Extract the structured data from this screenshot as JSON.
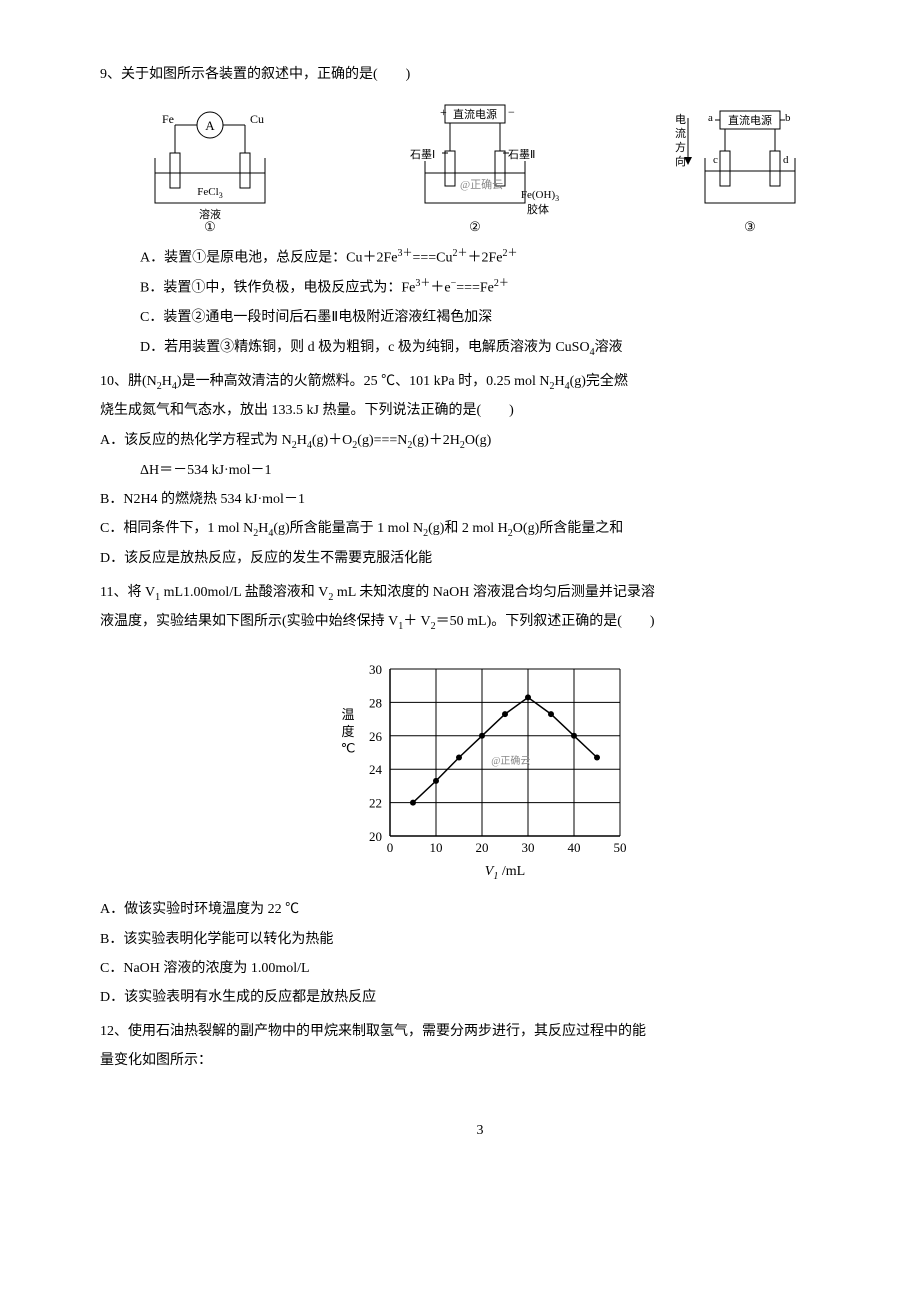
{
  "q9": {
    "stem": "9、关于如图所示各装置的叙述中，正确的是(　　)",
    "diagram": {
      "dev1": {
        "top_label_left": "Fe",
        "top_label_right": "Cu",
        "meter": "A",
        "sol_line1": "FeCl",
        "sol_sub": "3",
        "sol_line2": "溶液",
        "num": "①"
      },
      "dev2": {
        "top_box": "直流电源",
        "left_elec": "石墨Ⅰ",
        "right_elec": "石墨Ⅱ",
        "wm": "@正确云",
        "sol_line1": "Fe(OH)",
        "sol_sub": "3",
        "sol_line2": "胶体",
        "num": "②"
      },
      "dev3": {
        "side_line1": "电",
        "side_line2": "流",
        "side_line3": "方",
        "side_line4": "向",
        "top_box": "直流电源",
        "a": "a",
        "b": "b",
        "c": "c",
        "d": "d",
        "num": "③"
      }
    },
    "optA": {
      "pre": "A．装置①是原电池，总反应是：Cu＋2Fe",
      "sup1": "3＋",
      "mid1": "===Cu",
      "sup2": "2＋",
      "mid2": "＋2Fe",
      "sup3": "2＋"
    },
    "optB": {
      "pre": "B．装置①中，铁作负极，电极反应式为：Fe",
      "sup1": "3＋",
      "mid1": "＋e",
      "sup2": "−",
      "mid2": "===Fe",
      "sup3": "2＋"
    },
    "optC": "C．装置②通电一段时间后石墨Ⅱ电极附近溶液红褐色加深",
    "optD": {
      "pre": "D．若用装置③精炼铜，则 d 极为粗铜，c 极为纯铜，电解质溶液为 CuSO",
      "sub": "4",
      "post": "溶液"
    }
  },
  "q10": {
    "stem_pre": "10、肼(N",
    "stem_sub1": "2",
    "stem_mid1": "H",
    "stem_sub2": "4",
    "stem_mid2": ")是一种高效清洁的火箭燃料。25 ℃、101 kPa 时，0.25 mol N",
    "stem_sub3": "2",
    "stem_mid3": "H",
    "stem_sub4": "4",
    "stem_mid4": "(g)完全燃",
    "stem_line2": "烧生成氮气和气态水，放出 133.5 kJ 热量。下列说法正确的是(　　)",
    "optA_line1_pre": "A．该反应的热化学方程式为 N",
    "optA_s1": "2",
    "optA_m1": "H",
    "optA_s2": "4",
    "optA_m2": "(g)＋O",
    "optA_s3": "2",
    "optA_m3": "(g)===N",
    "optA_s4": "2",
    "optA_m4": "(g)＋2H",
    "optA_s5": "2",
    "optA_m5": "O(g)",
    "optA_line2": "ΔH＝－534 kJ·mol－1",
    "optB": "B．N2H4 的燃烧热 534 kJ·mol－1",
    "optC_pre": "C．相同条件下，1 mol N",
    "optC_s1": "2",
    "optC_m1": "H",
    "optC_s2": "4",
    "optC_m2": "(g)所含能量高于 1 mol N",
    "optC_s3": "2",
    "optC_m3": "(g)和 2 mol H",
    "optC_s4": "2",
    "optC_m4": "O(g)所含能量之和",
    "optD": "D．该反应是放热反应，反应的发生不需要克服活化能"
  },
  "q11": {
    "stem_pre": "11、将 V",
    "stem_s1": "1",
    "stem_m1": " mL1.00mol/L 盐酸溶液和 V",
    "stem_s2": "2",
    "stem_m2": " mL 未知浓度的 NaOH 溶液混合均匀后测量并记录溶",
    "stem_line2_pre": "液温度，实验结果如下图所示(实验中始终保持 V",
    "stem_line2_s1": "1",
    "stem_line2_m1": "＋ V",
    "stem_line2_s2": "2",
    "stem_line2_post": "＝50 mL)。下列叙述正确的是(　　)",
    "chart": {
      "y_label_1": "温",
      "y_label_2": "度",
      "y_label_3": "℃",
      "x_label_pre": "V",
      "x_label_sub": "1",
      "x_label_post": " /mL",
      "watermark": "@正确云",
      "x_ticks": [
        "0",
        "10",
        "20",
        "30",
        "40",
        "50"
      ],
      "y_ticks": [
        "20",
        "22",
        "24",
        "26",
        "28",
        "30"
      ],
      "points": [
        {
          "x": 5,
          "y": 22
        },
        {
          "x": 10,
          "y": 23.3
        },
        {
          "x": 15,
          "y": 24.7
        },
        {
          "x": 20,
          "y": 26.0
        },
        {
          "x": 25,
          "y": 27.3
        },
        {
          "x": 30,
          "y": 28.3
        },
        {
          "x": 35,
          "y": 27.3
        },
        {
          "x": 40,
          "y": 26.0
        },
        {
          "x": 45,
          "y": 24.7
        }
      ],
      "grid_color": "#000",
      "line_color": "#000",
      "xlim": [
        0,
        50
      ],
      "ylim": [
        20,
        30
      ]
    },
    "optA": "A．做该实验时环境温度为 22 ℃",
    "optB": "B．该实验表明化学能可以转化为热能",
    "optC": "C．NaOH 溶液的浓度为 1.00mol/L",
    "optD": "D．该实验表明有水生成的反应都是放热反应"
  },
  "q12": {
    "stem_line1": "12、使用石油热裂解的副产物中的甲烷来制取氢气，需要分两步进行，其反应过程中的能",
    "stem_line2": "量变化如图所示："
  },
  "page_number": "3"
}
